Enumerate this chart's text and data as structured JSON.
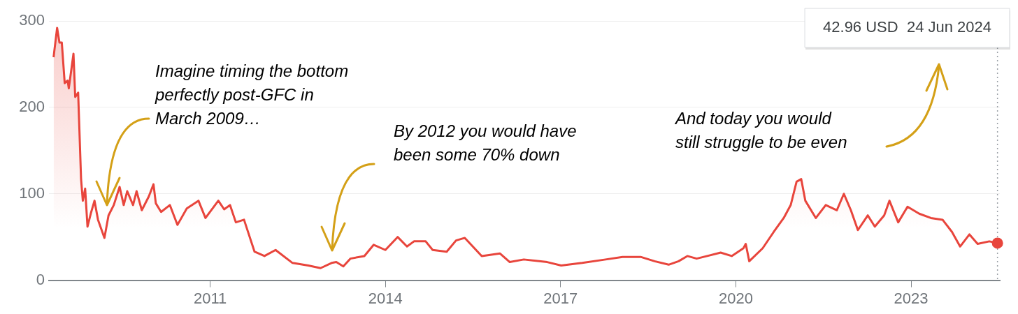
{
  "chart_data": {
    "type": "area",
    "x": [
      2008.32,
      2008.33,
      2008.38,
      2008.42,
      2008.46,
      2008.51,
      2008.56,
      2008.58,
      2008.66,
      2008.69,
      2008.74,
      2008.79,
      2008.82,
      2008.86,
      2008.9,
      2008.96,
      2009.02,
      2009.08,
      2009.19,
      2009.26,
      2009.35,
      2009.45,
      2009.52,
      2009.58,
      2009.68,
      2009.74,
      2009.83,
      2009.95,
      2010.03,
      2010.07,
      2010.16,
      2010.31,
      2010.44,
      2010.6,
      2010.8,
      2010.92,
      2011.14,
      2011.24,
      2011.34,
      2011.44,
      2011.58,
      2011.76,
      2011.93,
      2012.12,
      2012.41,
      2012.68,
      2012.89,
      2013.08,
      2013.16,
      2013.28,
      2013.4,
      2013.64,
      2013.8,
      2014.0,
      2014.21,
      2014.37,
      2014.49,
      2014.69,
      2014.81,
      2015.05,
      2015.21,
      2015.36,
      2015.65,
      2015.96,
      2016.13,
      2016.37,
      2016.77,
      2017.01,
      2017.37,
      2017.77,
      2018.06,
      2018.37,
      2018.61,
      2018.85,
      2019.02,
      2019.17,
      2019.33,
      2019.74,
      2019.93,
      2020.13,
      2020.17,
      2020.23,
      2020.46,
      2020.65,
      2020.82,
      2020.94,
      2021.04,
      2021.12,
      2021.19,
      2021.37,
      2021.54,
      2021.73,
      2021.85,
      2021.97,
      2022.09,
      2022.26,
      2022.38,
      2022.54,
      2022.63,
      2022.78,
      2022.94,
      2023.14,
      2023.34,
      2023.54,
      2023.7,
      2023.84,
      2024.0,
      2024.14,
      2024.34,
      2024.48
    ],
    "series": [
      {
        "color": "#e8453c",
        "values": [
          258,
          264,
          292,
          275,
          275,
          228,
          231,
          222,
          262,
          212,
          217,
          117,
          92,
          106,
          62,
          78,
          92,
          70,
          49,
          75,
          87,
          108,
          87,
          103,
          87,
          103,
          81,
          97,
          111,
          89,
          79,
          87,
          64,
          83,
          92,
          72,
          92,
          82,
          87,
          67,
          70,
          33,
          28,
          35,
          20,
          17,
          14,
          20,
          21,
          16,
          25,
          28,
          41,
          35,
          50,
          39,
          45,
          45,
          35,
          33,
          46,
          49,
          28,
          31,
          21,
          24,
          21,
          17,
          20,
          24,
          27,
          27,
          22,
          18,
          22,
          28,
          25,
          32,
          28,
          37,
          42,
          22,
          37,
          56,
          72,
          87,
          114,
          117,
          92,
          72,
          87,
          81,
          100,
          81,
          58,
          75,
          62,
          75,
          92,
          67,
          85,
          77,
          72,
          70,
          56,
          39,
          53,
          42,
          45,
          42.96
        ]
      }
    ],
    "xlim": [
      2008.24,
      2024.52
    ],
    "xticks": [
      2011,
      2014,
      2017,
      2020,
      2023
    ],
    "ylim": [
      0,
      300
    ],
    "yticks": [
      0,
      100,
      200,
      300
    ],
    "grid": "y",
    "legend": false,
    "ref_lines": [
      {
        "axis": "x",
        "value": 2024.48,
        "color": "#9aa0a6",
        "line_style": "dotted"
      }
    ],
    "annotations": [
      "42.96 USD  24 Jun 2024",
      "Imagine timing the bottom\nperfectly post-GFC in\nMarch 2009…",
      "By 2012 you would have\nbeen some 70% down",
      "And today you would\nstill struggle to be even"
    ]
  }
}
